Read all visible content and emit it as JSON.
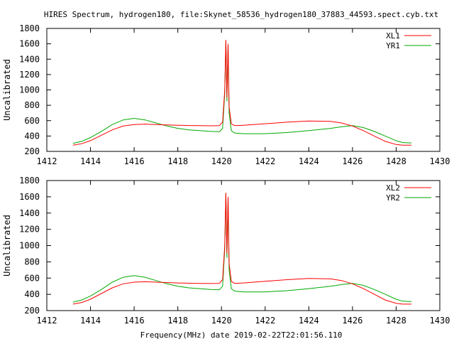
{
  "figure": {
    "title": "HIRES Spectrum, hydrogen180, file:Skynet_58536_hydrogen180_37883_44593.spect.cyb.txt",
    "xlabel": "Frequency(MHz) date 2019-02-22T22:01:56.110"
  },
  "colors": {
    "red": "#ff0000",
    "green": "#00aa00",
    "axis": "#000000"
  },
  "chart_data": [
    {
      "type": "line",
      "title": "HIRES Spectrum, hydrogen180, file:Skynet_58536_hydrogen180_37883_44593.spect.cyb.txt",
      "xlabel": "",
      "ylabel": "Uncalibrated",
      "xlim": [
        1412,
        1430
      ],
      "ylim": [
        200,
        1800
      ],
      "xticks": [
        1412,
        1414,
        1416,
        1418,
        1420,
        1422,
        1424,
        1426,
        1428,
        1430
      ],
      "yticks": [
        200,
        400,
        600,
        800,
        1000,
        1200,
        1400,
        1600,
        1800
      ],
      "grid": false,
      "legend": "top-right",
      "series": [
        {
          "name": "XL1",
          "color": "#ff0000",
          "x": [
            1413.2,
            1413.6,
            1414.0,
            1414.5,
            1415.0,
            1415.5,
            1416.0,
            1416.5,
            1417.0,
            1417.5,
            1418.0,
            1418.5,
            1419.0,
            1419.5,
            1419.9,
            1420.05,
            1420.15,
            1420.2,
            1420.25,
            1420.3,
            1420.35,
            1420.45,
            1420.6,
            1421.0,
            1422.0,
            1423.0,
            1424.0,
            1425.0,
            1425.5,
            1426.0,
            1426.5,
            1427.0,
            1427.5,
            1428.0,
            1428.3,
            1428.7
          ],
          "y": [
            280,
            300,
            340,
            410,
            480,
            530,
            550,
            555,
            550,
            545,
            540,
            537,
            535,
            533,
            535,
            580,
            1000,
            1650,
            900,
            1600,
            780,
            560,
            535,
            540,
            560,
            580,
            595,
            590,
            570,
            530,
            470,
            400,
            330,
            290,
            280,
            280
          ]
        },
        {
          "name": "YR1",
          "color": "#00aa00",
          "x": [
            1413.2,
            1413.6,
            1414.0,
            1414.5,
            1415.0,
            1415.5,
            1416.0,
            1416.5,
            1417.0,
            1417.5,
            1418.0,
            1418.5,
            1419.0,
            1419.5,
            1419.9,
            1420.05,
            1420.15,
            1420.2,
            1420.25,
            1420.3,
            1420.35,
            1420.45,
            1420.6,
            1421.0,
            1422.0,
            1423.0,
            1424.0,
            1425.0,
            1425.5,
            1426.0,
            1426.5,
            1427.0,
            1427.5,
            1428.0,
            1428.3,
            1428.7
          ],
          "y": [
            305,
            330,
            380,
            460,
            550,
            610,
            630,
            610,
            570,
            530,
            500,
            480,
            470,
            460,
            455,
            500,
            950,
            1640,
            850,
            1580,
            700,
            470,
            440,
            430,
            430,
            445,
            470,
            500,
            520,
            535,
            510,
            460,
            400,
            340,
            315,
            310
          ]
        }
      ]
    },
    {
      "type": "line",
      "title": "",
      "xlabel": "Frequency(MHz) date 2019-02-22T22:01:56.110",
      "ylabel": "Uncalibrated",
      "xlim": [
        1412,
        1430
      ],
      "ylim": [
        200,
        1800
      ],
      "xticks": [
        1412,
        1414,
        1416,
        1418,
        1420,
        1422,
        1424,
        1426,
        1428,
        1430
      ],
      "yticks": [
        200,
        400,
        600,
        800,
        1000,
        1200,
        1400,
        1600,
        1800
      ],
      "grid": false,
      "legend": "top-right",
      "series": [
        {
          "name": "XL2",
          "color": "#ff0000",
          "x": [
            1413.2,
            1413.6,
            1414.0,
            1414.5,
            1415.0,
            1415.5,
            1416.0,
            1416.5,
            1417.0,
            1417.5,
            1418.0,
            1418.5,
            1419.0,
            1419.5,
            1419.9,
            1420.05,
            1420.15,
            1420.2,
            1420.25,
            1420.3,
            1420.35,
            1420.45,
            1420.6,
            1421.0,
            1422.0,
            1423.0,
            1424.0,
            1425.0,
            1425.5,
            1426.0,
            1426.5,
            1427.0,
            1427.5,
            1428.0,
            1428.3,
            1428.7
          ],
          "y": [
            280,
            300,
            340,
            410,
            480,
            530,
            550,
            555,
            550,
            545,
            540,
            537,
            535,
            533,
            535,
            580,
            1000,
            1650,
            900,
            1600,
            780,
            560,
            535,
            540,
            560,
            580,
            595,
            590,
            570,
            530,
            470,
            400,
            330,
            290,
            280,
            280
          ]
        },
        {
          "name": "YR2",
          "color": "#00aa00",
          "x": [
            1413.2,
            1413.6,
            1414.0,
            1414.5,
            1415.0,
            1415.5,
            1416.0,
            1416.5,
            1417.0,
            1417.5,
            1418.0,
            1418.5,
            1419.0,
            1419.5,
            1419.9,
            1420.05,
            1420.15,
            1420.2,
            1420.25,
            1420.3,
            1420.35,
            1420.45,
            1420.6,
            1421.0,
            1422.0,
            1423.0,
            1424.0,
            1425.0,
            1425.5,
            1426.0,
            1426.5,
            1427.0,
            1427.5,
            1428.0,
            1428.3,
            1428.7
          ],
          "y": [
            305,
            330,
            380,
            460,
            550,
            610,
            630,
            610,
            570,
            530,
            500,
            480,
            470,
            460,
            455,
            500,
            950,
            1640,
            850,
            1580,
            700,
            470,
            440,
            430,
            430,
            445,
            470,
            500,
            520,
            535,
            510,
            460,
            400,
            340,
            315,
            310
          ]
        }
      ]
    }
  ]
}
